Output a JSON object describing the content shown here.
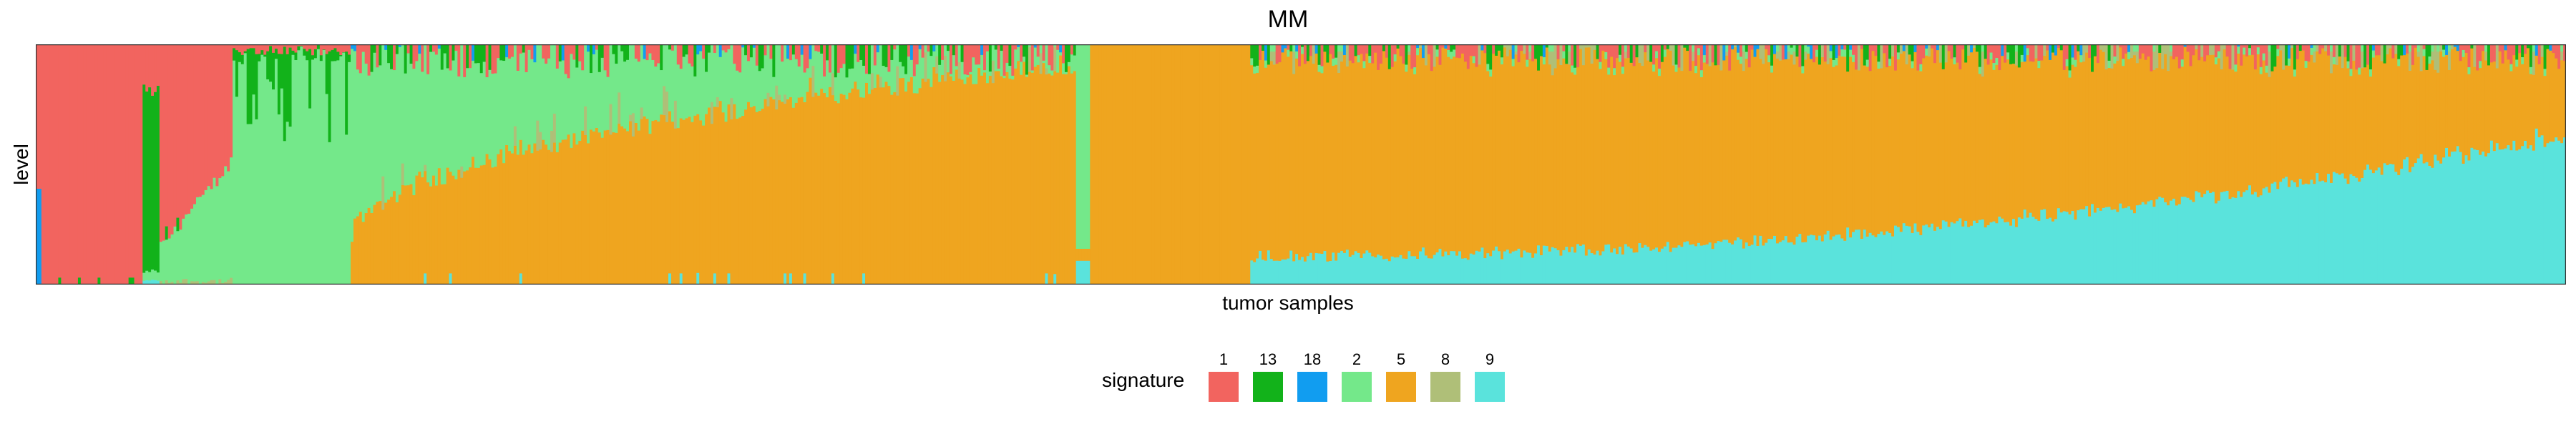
{
  "chart_data": {
    "type": "bar",
    "stacked": true,
    "title": "MM",
    "xlabel": "tumor samples",
    "ylabel": "level",
    "ylim": [
      0,
      1
    ],
    "grid": false,
    "legend_position": "bottom",
    "legend_title": "signature",
    "n_samples": 900,
    "series": [
      {
        "name": "1",
        "color": "#F2645F"
      },
      {
        "name": "13",
        "color": "#12B21A"
      },
      {
        "name": "18",
        "color": "#119DF0"
      },
      {
        "name": "2",
        "color": "#74E88A"
      },
      {
        "name": "5",
        "color": "#EFA51F"
      },
      {
        "name": "8",
        "color": "#AFBF78"
      },
      {
        "name": "9",
        "color": "#5AE3DC"
      }
    ],
    "segments": [
      {
        "from": 0,
        "to": 2,
        "pattern": "sig18-then-sig1",
        "sig18_fraction": 0.4
      },
      {
        "from": 2,
        "to": 38,
        "pattern": "mostly-sig1"
      },
      {
        "from": 38,
        "to": 44,
        "pattern": "mostly-sig13"
      },
      {
        "from": 44,
        "to": 70,
        "pattern": "sig2-rising-under-sig1",
        "sig2_start": 0.15,
        "sig2_end": 0.5
      },
      {
        "from": 70,
        "to": 112,
        "pattern": "mostly-sig2-with-sig13"
      },
      {
        "from": 112,
        "to": 370,
        "pattern": "sig5-rising-under-sig2",
        "sig5_start": 0.2,
        "sig5_end": 0.92
      },
      {
        "from": 370,
        "to": 375,
        "pattern": "sig2-and-sig9-mix"
      },
      {
        "from": 375,
        "to": 432,
        "pattern": "pure-sig5"
      },
      {
        "from": 432,
        "to": 900,
        "pattern": "sig9-rising-under-sig5",
        "sig9_start": 0.12,
        "sig9_end": 0.62
      }
    ]
  }
}
